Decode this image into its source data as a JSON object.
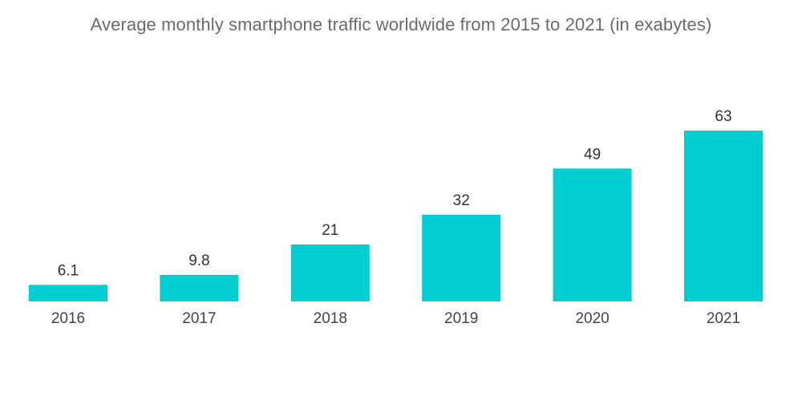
{
  "chart_data": {
    "type": "bar",
    "title": "Average monthly smartphone traffic worldwide from 2015 to 2021 (in exabytes)",
    "categories": [
      "2016",
      "2017",
      "2018",
      "2019",
      "2020",
      "2021"
    ],
    "values": [
      6.1,
      9.8,
      21,
      32,
      49,
      63
    ],
    "value_labels": [
      "6.1",
      "9.8",
      "21",
      "32",
      "49",
      "63"
    ],
    "xlabel": "",
    "ylabel": "",
    "ylim": [
      0,
      63
    ],
    "grid": false,
    "legend": "none",
    "bar_color": "#00CED1"
  }
}
